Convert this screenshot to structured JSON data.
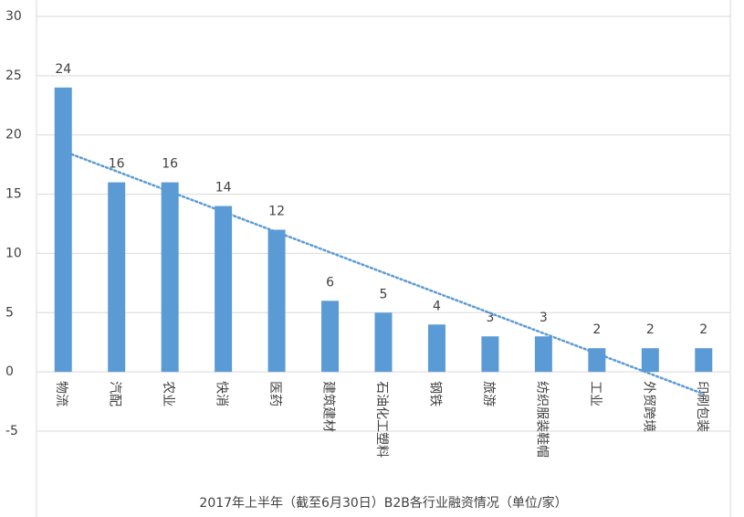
{
  "chart_data": {
    "type": "bar",
    "title": "2017年上半年（截至6月30日）B2B各行业融资情况（单位/家）",
    "categories": [
      "物流",
      "汽配",
      "农业",
      "快消",
      "医药",
      "建筑建材",
      "石油化工塑料",
      "钢铁",
      "旅游",
      "纺织服装鞋帽",
      "工业",
      "外贸跨境",
      "印刷包装"
    ],
    "values": [
      24,
      16,
      16,
      14,
      12,
      6,
      5,
      4,
      3,
      3,
      2,
      2,
      2
    ],
    "color": "#5b9bd5",
    "ylim": [
      -5,
      30
    ],
    "yticks": [
      -5,
      0,
      5,
      10,
      15,
      20,
      25,
      30
    ],
    "grid": true,
    "trendline": "linear",
    "trendline_color": "#5b9bd5"
  }
}
